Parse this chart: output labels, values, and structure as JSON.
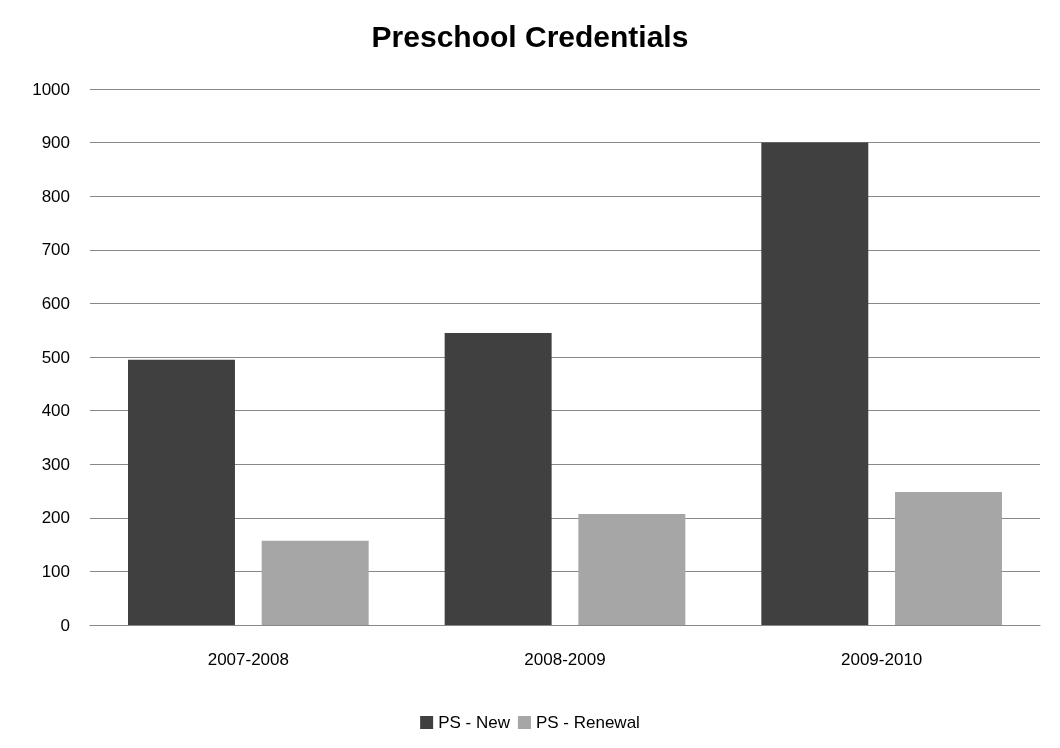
{
  "chart_data": {
    "type": "bar",
    "title": "Preschool Credentials",
    "categories": [
      "2007-2008",
      "2008-2009",
      "2009-2010"
    ],
    "series": [
      {
        "name": "PS - New",
        "color": "#404040",
        "values": [
          495,
          545,
          900
        ]
      },
      {
        "name": "PS - Renewal",
        "color": "#a6a6a6",
        "values": [
          157,
          207,
          248
        ]
      }
    ],
    "ylim": [
      0,
      1000
    ],
    "yticks": [
      0,
      100,
      200,
      300,
      400,
      500,
      600,
      700,
      800,
      900,
      1000
    ],
    "grid": "y",
    "legend": "bottom"
  }
}
